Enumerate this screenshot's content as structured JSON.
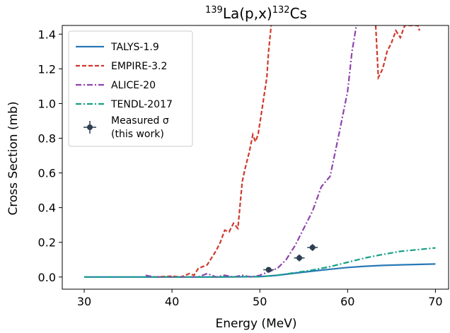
{
  "chart_data": {
    "type": "line",
    "title": {
      "base": "La(p,x)",
      "pre_sup": "139",
      "post_sup": "132",
      "end": "Cs"
    },
    "xlabel": "Energy (MeV)",
    "ylabel": "Cross Section (mb)",
    "xlim": [
      27.5,
      71.5
    ],
    "ylim": [
      -0.07,
      1.45
    ],
    "xticks": [
      30,
      40,
      50,
      60,
      70
    ],
    "xtick_labels": [
      "30",
      "40",
      "50",
      "60",
      "70"
    ],
    "yticks": [
      0.0,
      0.2,
      0.4,
      0.6,
      0.8,
      1.0,
      1.2,
      1.4
    ],
    "ytick_labels": [
      "0.0",
      "0.2",
      "0.4",
      "0.6",
      "0.8",
      "1.0",
      "1.2",
      "1.4"
    ],
    "grid": false,
    "legend_position": "upper-left",
    "series": [
      {
        "name": "TALYS-1.9",
        "style": "solid",
        "color": "#2878b5",
        "x": [
          30,
          45,
          50,
          52,
          54,
          56,
          58,
          60,
          62,
          64,
          66,
          70
        ],
        "y": [
          0.0,
          0.0,
          0.002,
          0.01,
          0.022,
          0.034,
          0.045,
          0.055,
          0.062,
          0.067,
          0.07,
          0.075
        ]
      },
      {
        "name": "EMPIRE-3.2",
        "style": "dashed",
        "color": "#d0392b",
        "x": [
          38,
          40,
          41,
          42,
          42.5,
          43,
          44,
          45,
          45.5,
          46,
          46.5,
          47,
          47.5,
          48,
          48.3,
          48.8,
          49.2,
          49.5,
          49.8,
          50.2,
          50.5,
          50.8,
          51.0,
          51.3
        ],
        "y": [
          0.0,
          0.005,
          0.0,
          0.02,
          0.01,
          0.05,
          0.07,
          0.15,
          0.2,
          0.27,
          0.26,
          0.31,
          0.28,
          0.55,
          0.62,
          0.72,
          0.82,
          0.78,
          0.82,
          0.95,
          1.05,
          1.15,
          1.3,
          1.45
        ],
        "x2": [
          63.2,
          63.5,
          64,
          64.5,
          65,
          65.5,
          66,
          66.5,
          67,
          67.5,
          68,
          68.2
        ],
        "y2": [
          1.45,
          1.15,
          1.2,
          1.3,
          1.35,
          1.42,
          1.38,
          1.45,
          1.45,
          1.45,
          1.45,
          1.42
        ]
      },
      {
        "name": "ALICE-20",
        "style": "dashdot",
        "color": "#8e44ad",
        "x": [
          37,
          38,
          39,
          40,
          42,
          43,
          43.5,
          44,
          45,
          46,
          47,
          48,
          49,
          50,
          51,
          52,
          53,
          54,
          55,
          56,
          57,
          58,
          59,
          60,
          60.5,
          61
        ],
        "y": [
          0.01,
          0.0,
          0.0,
          0.0,
          0.0,
          0.0,
          0.01,
          0.02,
          0.0,
          0.01,
          0.0,
          0.01,
          0.0,
          0.01,
          0.03,
          0.05,
          0.1,
          0.18,
          0.28,
          0.38,
          0.52,
          0.58,
          0.82,
          1.07,
          1.3,
          1.45
        ]
      },
      {
        "name": "TENDL-2017",
        "style": "dashdot",
        "color": "#16a085",
        "x": [
          30,
          45,
          50,
          52,
          54,
          56,
          58,
          60,
          62,
          64,
          66,
          68,
          70
        ],
        "y": [
          0.0,
          0.0,
          0.002,
          0.01,
          0.025,
          0.04,
          0.06,
          0.085,
          0.11,
          0.13,
          0.148,
          0.158,
          0.168
        ]
      }
    ],
    "measured": {
      "name_lines": [
        "Measured σ",
        "(this work)"
      ],
      "color": "#2c3e50",
      "points": [
        {
          "x": 51.0,
          "y": 0.042,
          "xerr": 0.6,
          "yerr": 0.015
        },
        {
          "x": 54.5,
          "y": 0.11,
          "xerr": 0.6,
          "yerr": 0.02
        },
        {
          "x": 56.0,
          "y": 0.17,
          "xerr": 0.6,
          "yerr": 0.02
        }
      ]
    }
  }
}
